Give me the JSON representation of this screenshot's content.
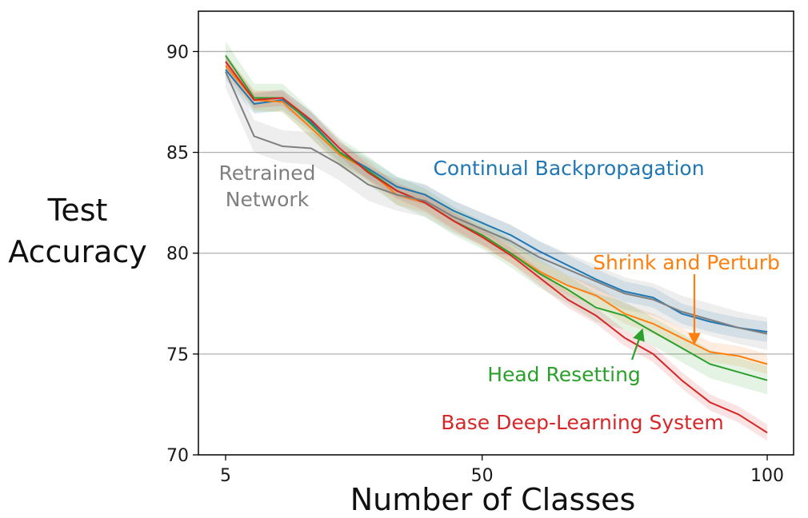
{
  "chart_data": {
    "type": "line",
    "title": "",
    "xlabel": "Number of Classes",
    "ylabel_lines": [
      "Test",
      "Accuracy"
    ],
    "xlim": [
      5,
      100
    ],
    "ylim": [
      70,
      92
    ],
    "x_ticks": [
      5,
      50,
      100
    ],
    "y_ticks": [
      70,
      75,
      80,
      85,
      90
    ],
    "grid": "horizontal",
    "legend": "inline-annotations",
    "x": [
      5,
      10,
      15,
      20,
      25,
      30,
      35,
      40,
      45,
      50,
      55,
      60,
      65,
      70,
      75,
      80,
      85,
      90,
      95,
      100
    ],
    "series": [
      {
        "name": "Continual Backpropagation",
        "color": "#1f77b4",
        "band": 0.5,
        "values": [
          89.1,
          87.4,
          87.6,
          86.5,
          85.0,
          84.2,
          83.3,
          82.9,
          82.1,
          81.5,
          80.9,
          80.1,
          79.4,
          78.7,
          78.1,
          77.8,
          77.0,
          76.6,
          76.3,
          76.1
        ]
      },
      {
        "name": "Shrink and Perturb",
        "color": "#ff7f0e",
        "band": 0.5,
        "values": [
          89.3,
          87.6,
          87.5,
          86.2,
          84.9,
          84.1,
          82.9,
          82.5,
          81.6,
          80.8,
          80.0,
          79.1,
          78.4,
          77.9,
          77.0,
          76.5,
          75.8,
          75.1,
          74.9,
          74.5
        ]
      },
      {
        "name": "Head Resetting",
        "color": "#2ca02c",
        "band": 0.7,
        "values": [
          89.8,
          87.7,
          87.7,
          86.4,
          85.0,
          84.1,
          83.1,
          82.5,
          81.6,
          80.9,
          80.0,
          79.0,
          78.2,
          77.3,
          76.9,
          76.1,
          75.3,
          74.5,
          74.1,
          73.7
        ]
      },
      {
        "name": "Base Deep-Learning System",
        "color": "#d62728",
        "band": 0.4,
        "values": [
          89.5,
          87.6,
          87.7,
          86.6,
          85.2,
          84.0,
          83.1,
          82.5,
          81.6,
          80.8,
          79.9,
          78.8,
          77.7,
          76.9,
          75.8,
          75.0,
          73.7,
          72.6,
          72.0,
          71.1
        ]
      },
      {
        "name": "Retrained Network",
        "color": "#7f7f7f",
        "band": 0.8,
        "values": [
          89.0,
          85.8,
          85.3,
          85.2,
          84.4,
          83.4,
          82.9,
          82.6,
          81.8,
          81.2,
          80.6,
          79.8,
          79.2,
          78.6,
          78.0,
          77.7,
          77.1,
          76.7,
          76.3,
          76.0
        ]
      }
    ],
    "annotations": [
      {
        "id": "cbp",
        "lines": [
          "Continual Backpropagation"
        ],
        "color": "#1f77b4"
      },
      {
        "id": "sp",
        "lines": [
          "Shrink and Perturb"
        ],
        "color": "#ff7f0e"
      },
      {
        "id": "hr",
        "lines": [
          "Head Resetting"
        ],
        "color": "#2ca02c"
      },
      {
        "id": "base",
        "lines": [
          "Base Deep-Learning System"
        ],
        "color": "#d62728"
      },
      {
        "id": "rn",
        "lines": [
          "Retrained",
          "Network"
        ],
        "color": "#7f7f7f"
      }
    ]
  }
}
